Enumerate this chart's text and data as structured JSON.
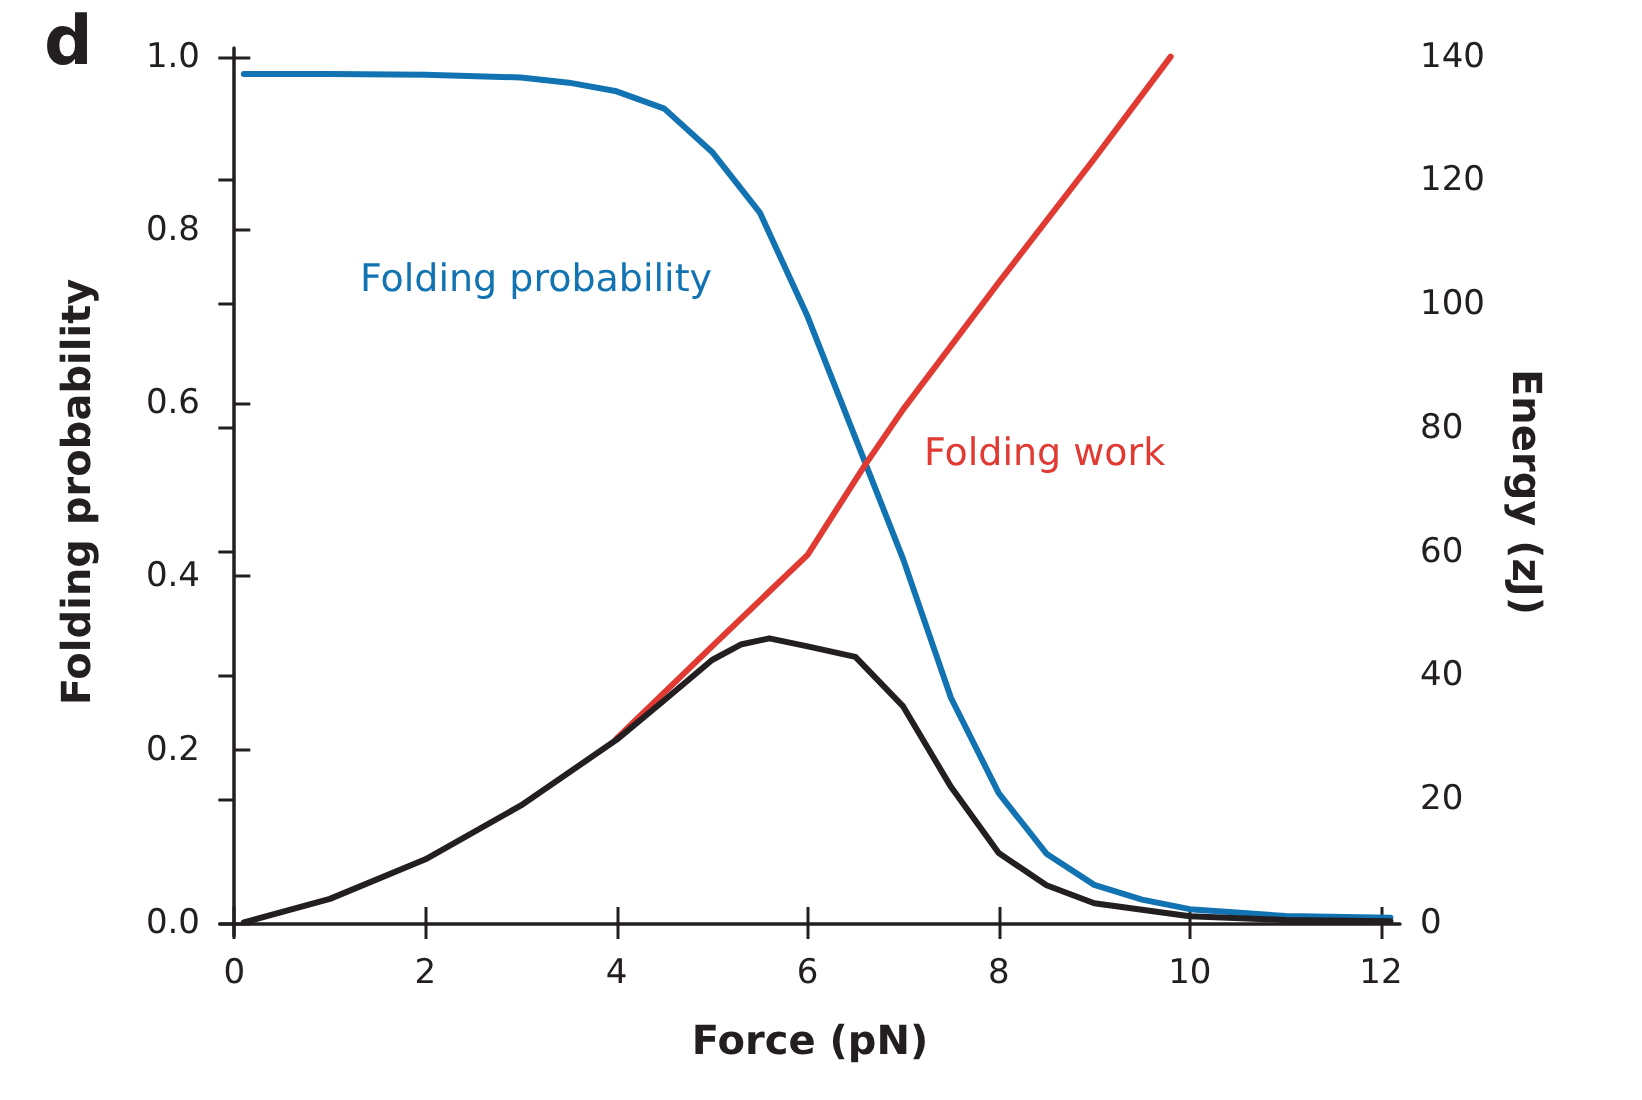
{
  "chart_data": {
    "type": "line",
    "xlabel": "Force (pN)",
    "ylabel": "Folding probability",
    "y2label": "Energy (zJ)",
    "annotations": [
      "d"
    ],
    "xlim": [
      -0.15,
      12.2
    ],
    "xticks": [
      0,
      2,
      4,
      6,
      8,
      10,
      12
    ],
    "ylim": [
      -0.015,
      1.01
    ],
    "yticks": [
      {
        "value": 0,
        "label": "0.0"
      },
      {
        "value": 0.2,
        "label": "0.2"
      },
      {
        "value": 0.4,
        "label": "0.4"
      },
      {
        "value": 0.6,
        "label": "0.6"
      },
      {
        "value": 0.8,
        "label": "0.8"
      },
      {
        "value": 1,
        "label": "1.0"
      }
    ],
    "y2lim": [
      -2.1,
      141.4
    ],
    "y2ticks": [
      0,
      20,
      40,
      60,
      80,
      100,
      120,
      140
    ],
    "grid": false,
    "legend": false,
    "marker": "none",
    "line_style": "solid",
    "series": [
      {
        "name": "Folding probability",
        "color": "#1273b3",
        "x": [
          0.1,
          1,
          2,
          3,
          3.5,
          4,
          4.5,
          5,
          5.5,
          6,
          6.5,
          7,
          7.5,
          8,
          8.5,
          9,
          9.5,
          10,
          11,
          12.1
        ],
        "values": [
          0.98,
          0.98,
          0.979,
          0.976,
          0.97,
          0.96,
          0.94,
          0.89,
          0.82,
          0.7,
          0.56,
          0.42,
          0.26,
          0.15,
          0.08,
          0.044,
          0.027,
          0.016,
          0.008,
          0.006
        ]
      },
      {
        "name": "Folding work",
        "color": "#e03a33",
        "axis": "y2",
        "x": [
          4,
          5,
          6,
          6.6,
          7,
          8,
          9,
          9.8
        ],
        "values": [
          29.8,
          44.7,
          59.5,
          74,
          83,
          103.5,
          123.5,
          140
        ]
      },
      {
        "color": "#231f20",
        "axis": "y2",
        "x": [
          0.1,
          1,
          2,
          3,
          4,
          4.5,
          5,
          5.3,
          5.6,
          6,
          6.5,
          7,
          7.5,
          8,
          8.5,
          9,
          10,
          11,
          12.1
        ],
        "values": [
          0.1,
          3.9,
          10.3,
          19,
          29.6,
          36,
          42.5,
          45,
          46,
          44.7,
          43,
          35,
          22,
          11.3,
          6.1,
          3.2,
          1.1,
          0.5,
          0.3
        ]
      }
    ]
  }
}
